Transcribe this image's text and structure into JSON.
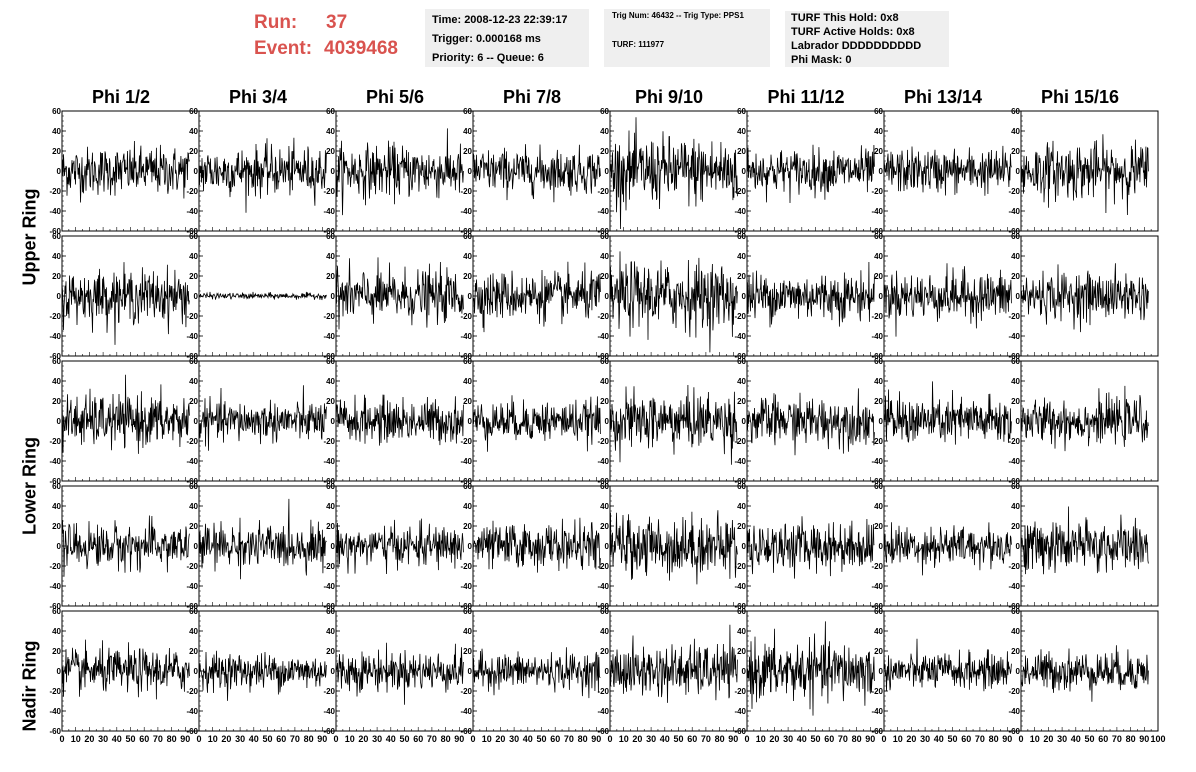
{
  "header": {
    "run_label": "Run:",
    "run_value": "37",
    "event_label": "Event:",
    "event_value": "4039468",
    "time": "Time: 2008-12-23 22:39:17",
    "trigger": "Trigger: 0.000168 ms",
    "priority": "Priority: 6 -- Queue: 6",
    "trig_num": "Trig Num: 46432 -- Trig Type: PPS1",
    "turf": "TURF: 111977",
    "turf_this_hold": "TURF This Hold: 0x8",
    "turf_active_holds": "TURF Active Holds: 0x8",
    "labrador": "Labrador DDDDDDDDDD",
    "phi_mask": "Phi Mask: 0"
  },
  "colors": {
    "header_accent": "#d9534f",
    "box_bg": "#efefef",
    "trace": "#000000"
  },
  "chart_data": {
    "type": "line",
    "columns": [
      "Phi 1/2",
      "Phi 3/4",
      "Phi 5/6",
      "Phi 7/8",
      "Phi 9/10",
      "Phi 11/12",
      "Phi 13/14",
      "Phi 15/16"
    ],
    "rows": [
      "Upper Ring",
      "",
      "Lower Ring",
      "",
      "Nadir Ring"
    ],
    "xlim": [
      0,
      100
    ],
    "ylim": [
      -60,
      60
    ],
    "x_ticks": [
      0,
      10,
      20,
      30,
      40,
      50,
      60,
      70,
      80,
      90,
      100
    ],
    "y_ticks": [
      -60,
      -40,
      -20,
      0,
      20,
      40,
      60
    ],
    "samples_per_trace": 256,
    "amplitude_rms": [
      [
        12,
        12,
        13,
        11,
        17,
        11,
        11,
        14
      ],
      [
        13,
        1.5,
        13,
        12,
        17,
        12,
        12,
        12
      ],
      [
        13,
        10,
        11,
        10,
        14,
        12,
        12,
        11
      ],
      [
        11,
        11,
        10,
        11,
        15,
        12,
        10,
        13
      ],
      [
        11,
        9,
        10,
        9,
        13,
        15,
        9,
        10
      ]
    ]
  }
}
